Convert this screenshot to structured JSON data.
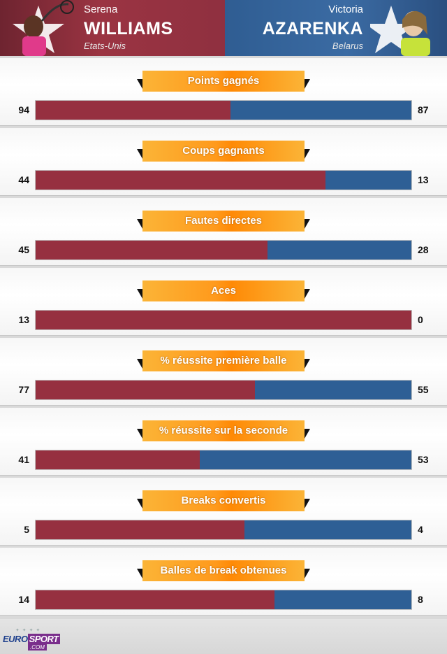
{
  "players": {
    "left": {
      "first_name": "Serena",
      "last_name": "WILLIAMS",
      "country": "Etats-Unis",
      "color": "#963040"
    },
    "right": {
      "first_name": "Victoria",
      "last_name": "AZARENKA",
      "country": "Belarus",
      "color": "#2e5f95"
    }
  },
  "chart_data": {
    "type": "bar",
    "orientation": "horizontal-stacked-split",
    "categories": [
      "Points gagnés",
      "Coups gagnants",
      "Fautes directes",
      "Aces",
      "% réussite première balle",
      "% réussite sur la seconde",
      "Breaks convertis",
      "Balles de break obtenues"
    ],
    "series": [
      {
        "name": "WILLIAMS",
        "values": [
          94,
          44,
          45,
          13,
          77,
          41,
          5,
          14
        ]
      },
      {
        "name": "AZARENKA",
        "values": [
          87,
          13,
          28,
          0,
          55,
          53,
          4,
          8
        ]
      }
    ]
  },
  "footer": {
    "logo": {
      "icon": "eurosport-logo",
      "word_a": "EURO",
      "word_b": "SPORT",
      "sub": ".COM"
    }
  }
}
